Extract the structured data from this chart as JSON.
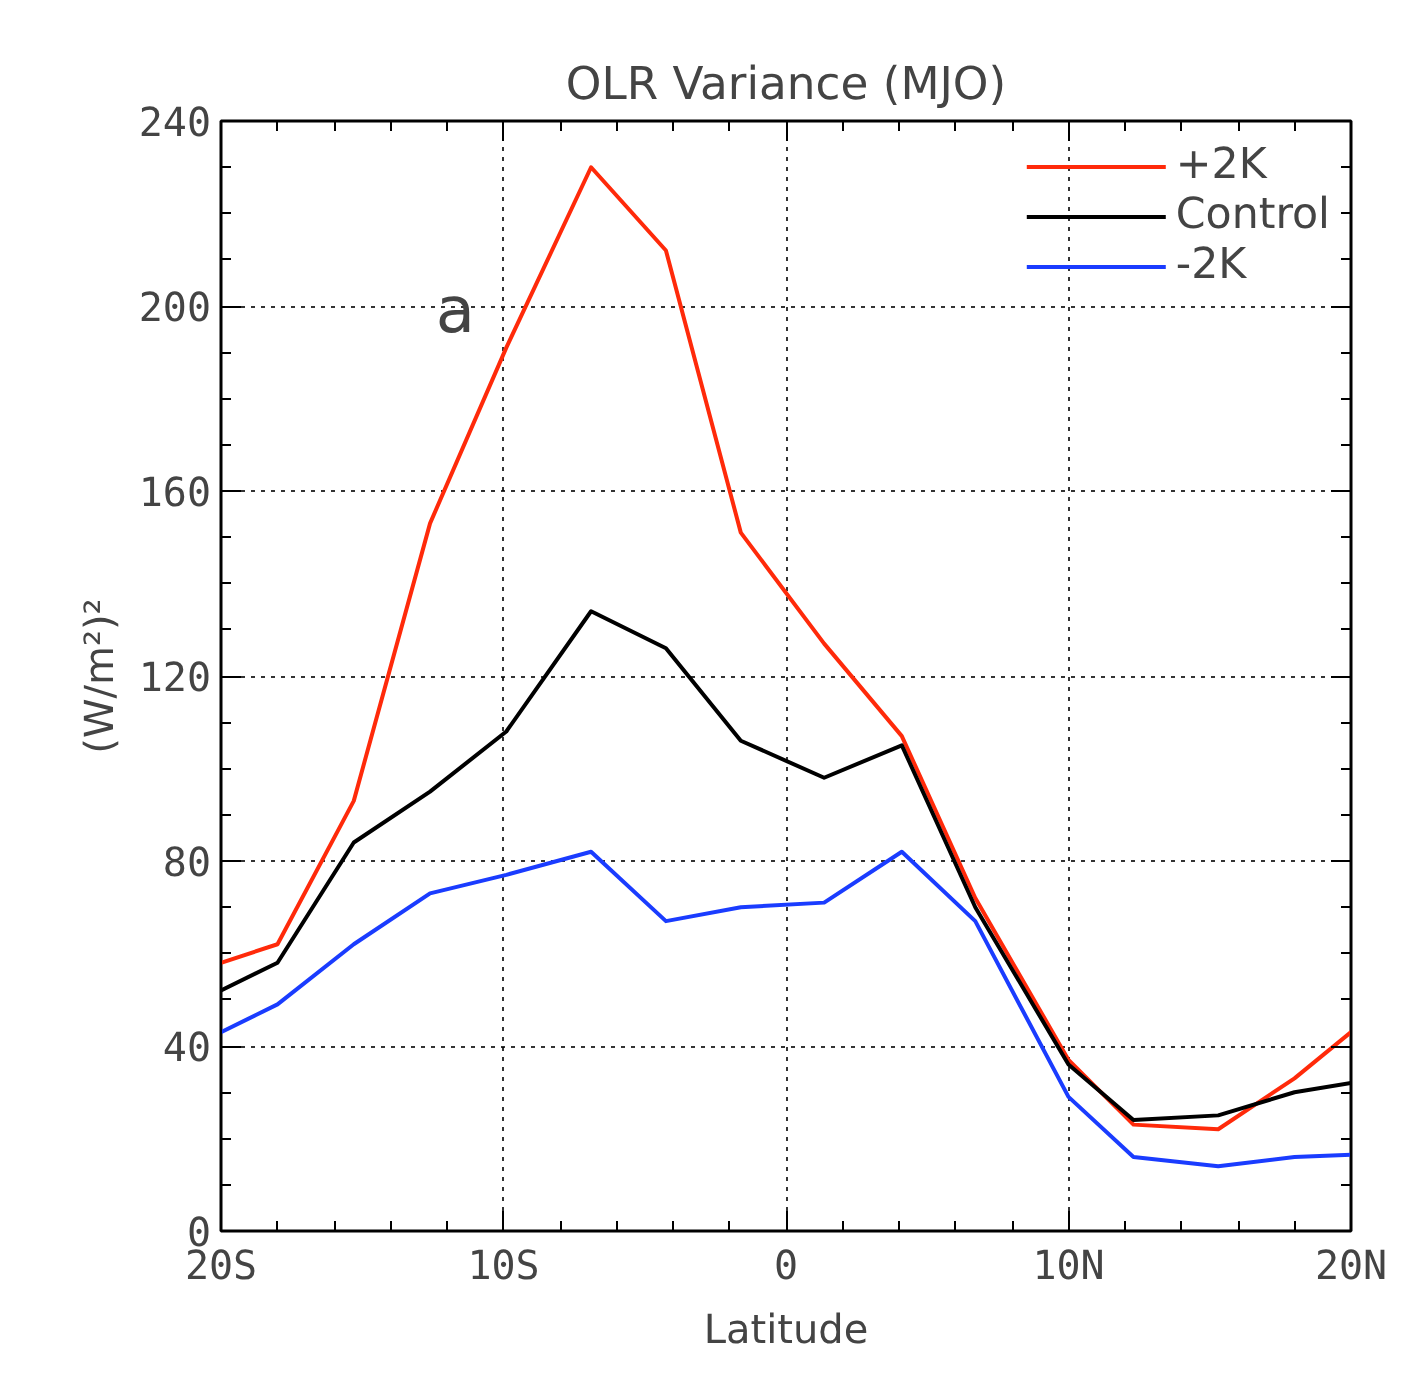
{
  "chart_data": {
    "type": "line",
    "title": "OLR Variance (MJO)",
    "xlabel": "Latitude",
    "ylabel": "(W/m²)²",
    "x": [
      -20,
      -18.0,
      -15.3,
      -12.6,
      -9.9,
      -6.9,
      -4.25,
      -1.6,
      1.35,
      4.1,
      6.7,
      10.0,
      12.3,
      15.3,
      18.0,
      20
    ],
    "series": [
      {
        "name": "+2K",
        "color": "#ff2a0a",
        "values": [
          58,
          62,
          93,
          153,
          191,
          230,
          212,
          151,
          127,
          107,
          72,
          37,
          23,
          22,
          33,
          43
        ]
      },
      {
        "name": "Control",
        "color": "#000000",
        "values": [
          52,
          58,
          84,
          95,
          108,
          134,
          126,
          106,
          98,
          105,
          70,
          36,
          24,
          25,
          30,
          32
        ]
      },
      {
        "name": "-2K",
        "color": "#1a3cff",
        "values": [
          43,
          49,
          62,
          73,
          77,
          82,
          67,
          70,
          71,
          82,
          67,
          29,
          16,
          14,
          16,
          16.5
        ]
      }
    ],
    "xlim": [
      -20,
      20
    ],
    "ylim": [
      0,
      240
    ],
    "xticks": [
      {
        "value": -20,
        "label": "20S"
      },
      {
        "value": -10,
        "label": "10S"
      },
      {
        "value": 0,
        "label": "0"
      },
      {
        "value": 10,
        "label": "10N"
      },
      {
        "value": 20,
        "label": "20N"
      }
    ],
    "yticks": [
      0,
      40,
      80,
      120,
      160,
      200,
      240
    ],
    "grid": true,
    "legend": "top right",
    "line_style": "solid",
    "marker": "none",
    "annotations": [
      "a"
    ]
  }
}
